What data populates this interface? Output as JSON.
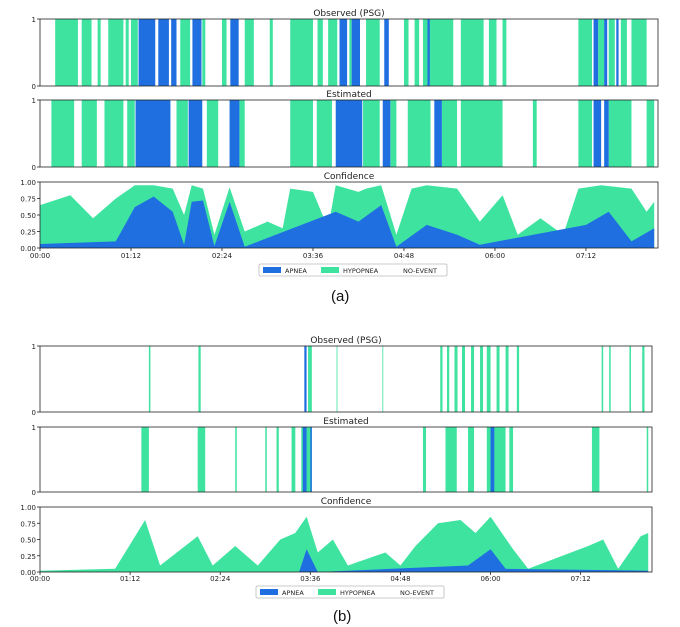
{
  "captions": [
    "(a)",
    "(b)"
  ],
  "colors": {
    "apnea": "#1f6fe0",
    "hypopnea": "#3fe3a0",
    "no_event": "#ffffff",
    "axis": "#222222"
  },
  "chart_data": [
    {
      "panel": "(a)",
      "type": "area",
      "subplots": [
        {
          "title": "Observed (PSG)",
          "ylim": [
            0,
            1
          ],
          "yticks": [
            "0",
            "1"
          ]
        },
        {
          "title": "Estimated",
          "ylim": [
            0,
            1
          ],
          "yticks": [
            "0",
            "1"
          ]
        },
        {
          "title": "Confidence",
          "ylim": [
            0,
            1
          ],
          "yticks": [
            "0.00",
            "0.25",
            "0.50",
            "0.75",
            "1.00"
          ]
        }
      ],
      "x_ticks": [
        "00:00",
        "01:12",
        "02:24",
        "03:36",
        "04:48",
        "06:00",
        "07:12"
      ],
      "legend": {
        "position": "bottom-center",
        "entries": [
          "APNEA",
          "HYPOPNEA",
          "NO-EVENT"
        ]
      },
      "series": [
        {
          "name": "APNEA",
          "events_observed": [
            [
              1.3,
              1.52
            ],
            [
              1.56,
              1.7
            ],
            [
              1.73,
              1.8
            ],
            [
              2.01,
              2.07
            ],
            [
              2.07,
              2.13
            ],
            [
              2.51,
              2.62
            ],
            [
              3.95,
              4.05
            ],
            [
              4.11,
              4.22
            ],
            [
              4.54,
              4.6
            ],
            [
              5.11,
              5.14
            ],
            [
              7.3,
              7.36
            ],
            [
              7.44,
              7.48
            ],
            [
              7.6,
              7.63
            ]
          ],
          "events_estimated": [
            [
              1.26,
              1.72
            ],
            [
              1.96,
              2.14
            ],
            [
              2.5,
              2.63
            ],
            [
              3.9,
              4.25
            ],
            [
              4.52,
              4.62
            ],
            [
              5.2,
              5.3
            ],
            [
              7.3,
              7.4
            ],
            [
              7.44,
              7.5
            ]
          ],
          "confidence": [
            [
              0,
              0.06
            ],
            [
              1.0,
              0.1
            ],
            [
              1.25,
              0.62
            ],
            [
              1.5,
              0.78
            ],
            [
              1.75,
              0.55
            ],
            [
              1.9,
              0.05
            ],
            [
              2.0,
              0.7
            ],
            [
              2.15,
              0.72
            ],
            [
              2.3,
              0.03
            ],
            [
              2.5,
              0.7
            ],
            [
              2.7,
              0.02
            ],
            [
              3.9,
              0.55
            ],
            [
              4.2,
              0.4
            ],
            [
              4.5,
              0.65
            ],
            [
              4.7,
              0.02
            ],
            [
              5.1,
              0.35
            ],
            [
              5.5,
              0.2
            ],
            [
              5.8,
              0.05
            ],
            [
              7.2,
              0.35
            ],
            [
              7.5,
              0.55
            ],
            [
              7.8,
              0.1
            ],
            [
              8.1,
              0.3
            ]
          ]
        },
        {
          "name": "HYPOPNEA",
          "events_observed": [
            [
              0.2,
              0.5
            ],
            [
              0.55,
              0.68
            ],
            [
              0.76,
              0.8
            ],
            [
              0.9,
              1.1
            ],
            [
              1.13,
              1.17
            ],
            [
              1.2,
              1.29
            ],
            [
              1.85,
              1.98
            ],
            [
              2.14,
              2.18
            ],
            [
              2.4,
              2.46
            ],
            [
              2.7,
              2.82
            ],
            [
              3.03,
              3.07
            ],
            [
              3.3,
              3.6
            ],
            [
              3.66,
              3.73
            ],
            [
              3.8,
              3.92
            ],
            [
              4.08,
              4.11
            ],
            [
              4.3,
              4.48
            ],
            [
              4.8,
              4.86
            ],
            [
              4.94,
              5.0
            ],
            [
              5.05,
              5.45
            ],
            [
              5.55,
              5.85
            ],
            [
              5.92,
              6.02
            ],
            [
              6.1,
              6.15
            ],
            [
              7.1,
              7.28
            ],
            [
              7.36,
              7.44
            ],
            [
              7.5,
              7.58
            ],
            [
              7.66,
              7.74
            ],
            [
              7.8,
              8.0
            ]
          ],
          "events_estimated": [
            [
              0.15,
              0.45
            ],
            [
              0.55,
              0.75
            ],
            [
              0.85,
              1.1
            ],
            [
              1.15,
              1.25
            ],
            [
              1.8,
              1.95
            ],
            [
              2.2,
              2.35
            ],
            [
              2.63,
              2.7
            ],
            [
              3.3,
              3.6
            ],
            [
              3.65,
              3.85
            ],
            [
              4.26,
              4.48
            ],
            [
              4.62,
              4.7
            ],
            [
              4.85,
              5.15
            ],
            [
              5.3,
              5.5
            ],
            [
              5.55,
              6.1
            ],
            [
              6.5,
              6.55
            ],
            [
              7.1,
              7.28
            ],
            [
              7.5,
              7.8
            ],
            [
              8.0,
              8.1
            ]
          ],
          "confidence": [
            [
              0,
              0.65
            ],
            [
              0.4,
              0.8
            ],
            [
              0.7,
              0.45
            ],
            [
              1.0,
              0.75
            ],
            [
              1.25,
              0.95
            ],
            [
              1.5,
              0.95
            ],
            [
              1.75,
              0.9
            ],
            [
              1.9,
              0.5
            ],
            [
              2.0,
              0.95
            ],
            [
              2.15,
              0.9
            ],
            [
              2.3,
              0.2
            ],
            [
              2.5,
              0.92
            ],
            [
              2.7,
              0.25
            ],
            [
              3.0,
              0.4
            ],
            [
              3.2,
              0.3
            ],
            [
              3.3,
              0.9
            ],
            [
              3.6,
              0.85
            ],
            [
              3.8,
              0.3
            ],
            [
              3.9,
              0.95
            ],
            [
              4.2,
              0.85
            ],
            [
              4.3,
              0.9
            ],
            [
              4.5,
              0.95
            ],
            [
              4.7,
              0.2
            ],
            [
              4.9,
              0.9
            ],
            [
              5.1,
              0.95
            ],
            [
              5.5,
              0.9
            ],
            [
              5.8,
              0.4
            ],
            [
              6.1,
              0.8
            ],
            [
              6.3,
              0.2
            ],
            [
              6.6,
              0.45
            ],
            [
              6.9,
              0.2
            ],
            [
              7.1,
              0.9
            ],
            [
              7.4,
              0.95
            ],
            [
              7.8,
              0.9
            ],
            [
              8.0,
              0.55
            ],
            [
              8.1,
              0.7
            ]
          ]
        }
      ],
      "x_range_hours": [
        0,
        8.15
      ]
    },
    {
      "panel": "(b)",
      "type": "area",
      "subplots": [
        {
          "title": "Observed (PSG)",
          "ylim": [
            0,
            1
          ],
          "yticks": [
            "0",
            "1"
          ]
        },
        {
          "title": "Estimated",
          "ylim": [
            0,
            1
          ],
          "yticks": [
            "0",
            "1"
          ]
        },
        {
          "title": "Confidence",
          "ylim": [
            0,
            1
          ],
          "yticks": [
            "0.00",
            "0.25",
            "0.50",
            "0.75",
            "1.00"
          ]
        }
      ],
      "x_ticks": [
        "00:00",
        "01:12",
        "02:24",
        "03:36",
        "04:48",
        "06:00",
        "07:12"
      ],
      "legend": {
        "position": "bottom-center",
        "entries": [
          "APNEA",
          "HYPOPNEA",
          "NO-EVENT"
        ]
      },
      "series": [
        {
          "name": "APNEA",
          "events_observed": [
            [
              3.52,
              3.55
            ]
          ],
          "events_estimated": [
            [
              3.5,
              3.55
            ],
            [
              3.6,
              3.62
            ],
            [
              6.0,
              6.05
            ]
          ],
          "confidence": [
            [
              0,
              0.0
            ],
            [
              3.45,
              0.0
            ],
            [
              3.55,
              0.35
            ],
            [
              3.7,
              0.0
            ],
            [
              5.7,
              0.1
            ],
            [
              6.0,
              0.35
            ],
            [
              6.2,
              0.05
            ],
            [
              8.1,
              0.02
            ]
          ]
        },
        {
          "name": "HYPOPNEA",
          "events_observed": [
            [
              1.45,
              1.47
            ],
            [
              2.11,
              2.14
            ],
            [
              3.57,
              3.62
            ],
            [
              3.95,
              3.96
            ],
            [
              4.56,
              4.57
            ],
            [
              5.33,
              5.36
            ],
            [
              5.42,
              5.45
            ],
            [
              5.52,
              5.56
            ],
            [
              5.62,
              5.66
            ],
            [
              5.74,
              5.78
            ],
            [
              5.86,
              5.9
            ],
            [
              5.95,
              6.0
            ],
            [
              6.08,
              6.12
            ],
            [
              6.2,
              6.24
            ],
            [
              6.35,
              6.38
            ],
            [
              7.48,
              7.5
            ],
            [
              7.58,
              7.6
            ],
            [
              7.85,
              7.87
            ],
            [
              8.02,
              8.05
            ]
          ],
          "events_estimated": [
            [
              1.35,
              1.45
            ],
            [
              2.1,
              2.2
            ],
            [
              2.6,
              2.62
            ],
            [
              3.0,
              3.02
            ],
            [
              3.15,
              3.18
            ],
            [
              3.35,
              3.4
            ],
            [
              3.48,
              3.62
            ],
            [
              5.1,
              5.14
            ],
            [
              5.4,
              5.55
            ],
            [
              5.7,
              5.78
            ],
            [
              5.95,
              6.2
            ],
            [
              6.25,
              6.3
            ],
            [
              7.35,
              7.45
            ],
            [
              8.08,
              8.1
            ]
          ],
          "confidence": [
            [
              0,
              0.02
            ],
            [
              1.0,
              0.05
            ],
            [
              1.4,
              0.8
            ],
            [
              1.6,
              0.1
            ],
            [
              2.1,
              0.55
            ],
            [
              2.3,
              0.1
            ],
            [
              2.6,
              0.4
            ],
            [
              2.9,
              0.1
            ],
            [
              3.2,
              0.5
            ],
            [
              3.4,
              0.6
            ],
            [
              3.55,
              0.85
            ],
            [
              3.7,
              0.3
            ],
            [
              3.9,
              0.5
            ],
            [
              4.1,
              0.1
            ],
            [
              4.6,
              0.3
            ],
            [
              4.8,
              0.1
            ],
            [
              5.0,
              0.4
            ],
            [
              5.3,
              0.75
            ],
            [
              5.6,
              0.8
            ],
            [
              5.8,
              0.6
            ],
            [
              6.0,
              0.85
            ],
            [
              6.3,
              0.35
            ],
            [
              6.5,
              0.05
            ],
            [
              7.3,
              0.4
            ],
            [
              7.5,
              0.5
            ],
            [
              7.7,
              0.05
            ],
            [
              8.0,
              0.55
            ],
            [
              8.1,
              0.6
            ]
          ]
        }
      ],
      "x_range_hours": [
        0,
        8.15
      ]
    }
  ]
}
